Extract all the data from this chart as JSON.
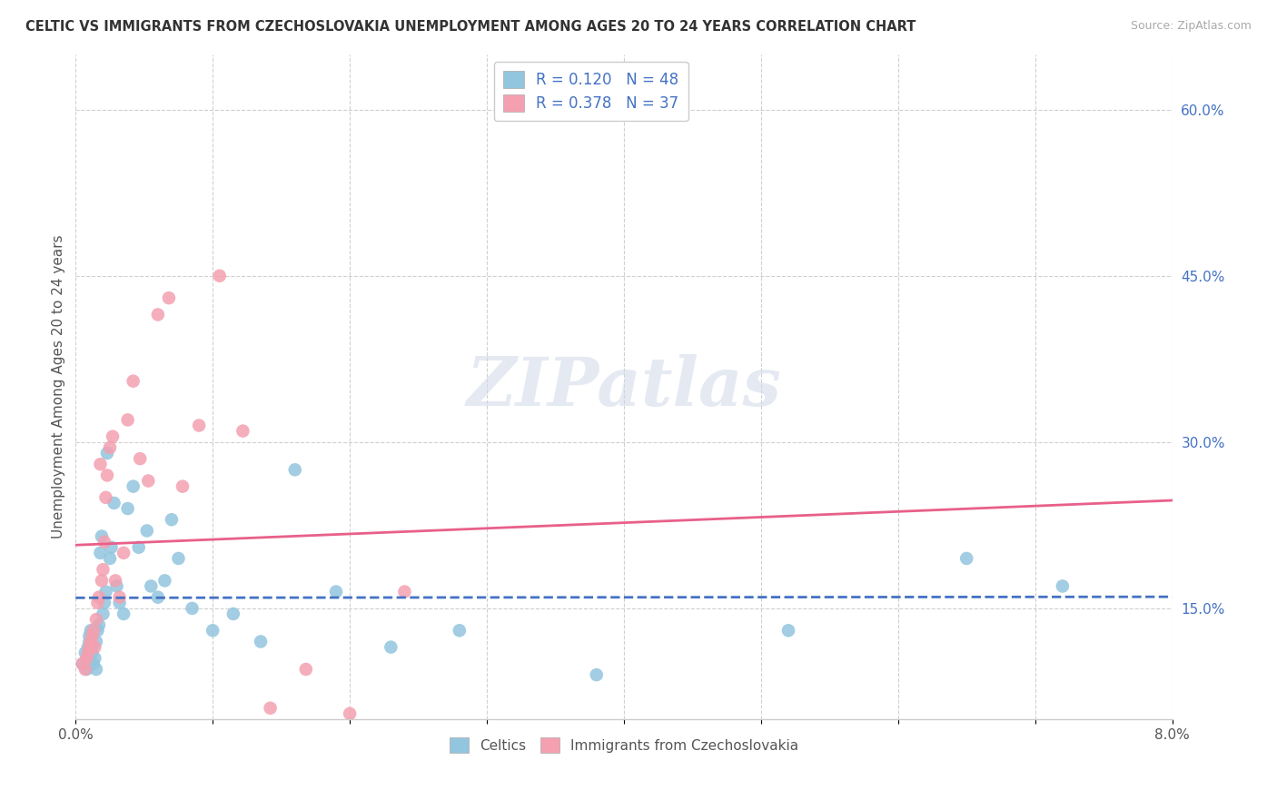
{
  "title": "CELTIC VS IMMIGRANTS FROM CZECHOSLOVAKIA UNEMPLOYMENT AMONG AGES 20 TO 24 YEARS CORRELATION CHART",
  "source": "Source: ZipAtlas.com",
  "ylabel": "Unemployment Among Ages 20 to 24 years",
  "right_yticks": [
    0.15,
    0.3,
    0.45,
    0.6
  ],
  "right_yticklabels": [
    "15.0%",
    "30.0%",
    "45.0%",
    "60.0%"
  ],
  "r1": 0.12,
  "n1": 48,
  "r2": 0.378,
  "n2": 37,
  "color_blue": "#92c5de",
  "color_pink": "#f4a0b0",
  "trendline_blue": "#4472c4",
  "trendline_pink": "#e8608a",
  "watermark_text": "ZIPatlas",
  "legend_entry1": "Celtics",
  "legend_entry2": "Immigrants from Czechoslovakia",
  "xlim": [
    0.0,
    0.08
  ],
  "ylim": [
    0.05,
    0.65
  ],
  "blue_x": [
    0.0005,
    0.0007,
    0.0008,
    0.0009,
    0.001,
    0.001,
    0.0011,
    0.0012,
    0.0012,
    0.0013,
    0.0014,
    0.0015,
    0.0015,
    0.0016,
    0.0017,
    0.0018,
    0.0019,
    0.002,
    0.0021,
    0.0022,
    0.0023,
    0.0025,
    0.0026,
    0.0028,
    0.003,
    0.0032,
    0.0035,
    0.0038,
    0.0042,
    0.0046,
    0.0052,
    0.0055,
    0.006,
    0.0065,
    0.007,
    0.0075,
    0.0085,
    0.01,
    0.0115,
    0.0135,
    0.016,
    0.019,
    0.023,
    0.028,
    0.038,
    0.052,
    0.065,
    0.072
  ],
  "blue_y": [
    0.1,
    0.11,
    0.095,
    0.115,
    0.12,
    0.125,
    0.13,
    0.11,
    0.115,
    0.1,
    0.105,
    0.12,
    0.095,
    0.13,
    0.135,
    0.2,
    0.215,
    0.145,
    0.155,
    0.165,
    0.29,
    0.195,
    0.205,
    0.245,
    0.17,
    0.155,
    0.145,
    0.24,
    0.26,
    0.205,
    0.22,
    0.17,
    0.16,
    0.175,
    0.23,
    0.195,
    0.15,
    0.13,
    0.145,
    0.12,
    0.275,
    0.165,
    0.115,
    0.13,
    0.09,
    0.13,
    0.195,
    0.17
  ],
  "pink_x": [
    0.0005,
    0.0007,
    0.0008,
    0.0009,
    0.001,
    0.0011,
    0.0012,
    0.0013,
    0.0014,
    0.0015,
    0.0016,
    0.0017,
    0.0018,
    0.0019,
    0.002,
    0.0021,
    0.0022,
    0.0023,
    0.0025,
    0.0027,
    0.0029,
    0.0032,
    0.0035,
    0.0038,
    0.0042,
    0.0047,
    0.0053,
    0.006,
    0.0068,
    0.0078,
    0.009,
    0.0105,
    0.0122,
    0.0142,
    0.0168,
    0.02,
    0.024
  ],
  "pink_y": [
    0.1,
    0.095,
    0.105,
    0.11,
    0.115,
    0.12,
    0.125,
    0.13,
    0.115,
    0.14,
    0.155,
    0.16,
    0.28,
    0.175,
    0.185,
    0.21,
    0.25,
    0.27,
    0.295,
    0.305,
    0.175,
    0.16,
    0.2,
    0.32,
    0.355,
    0.285,
    0.265,
    0.415,
    0.43,
    0.26,
    0.315,
    0.45,
    0.31,
    0.06,
    0.095,
    0.055,
    0.165
  ]
}
